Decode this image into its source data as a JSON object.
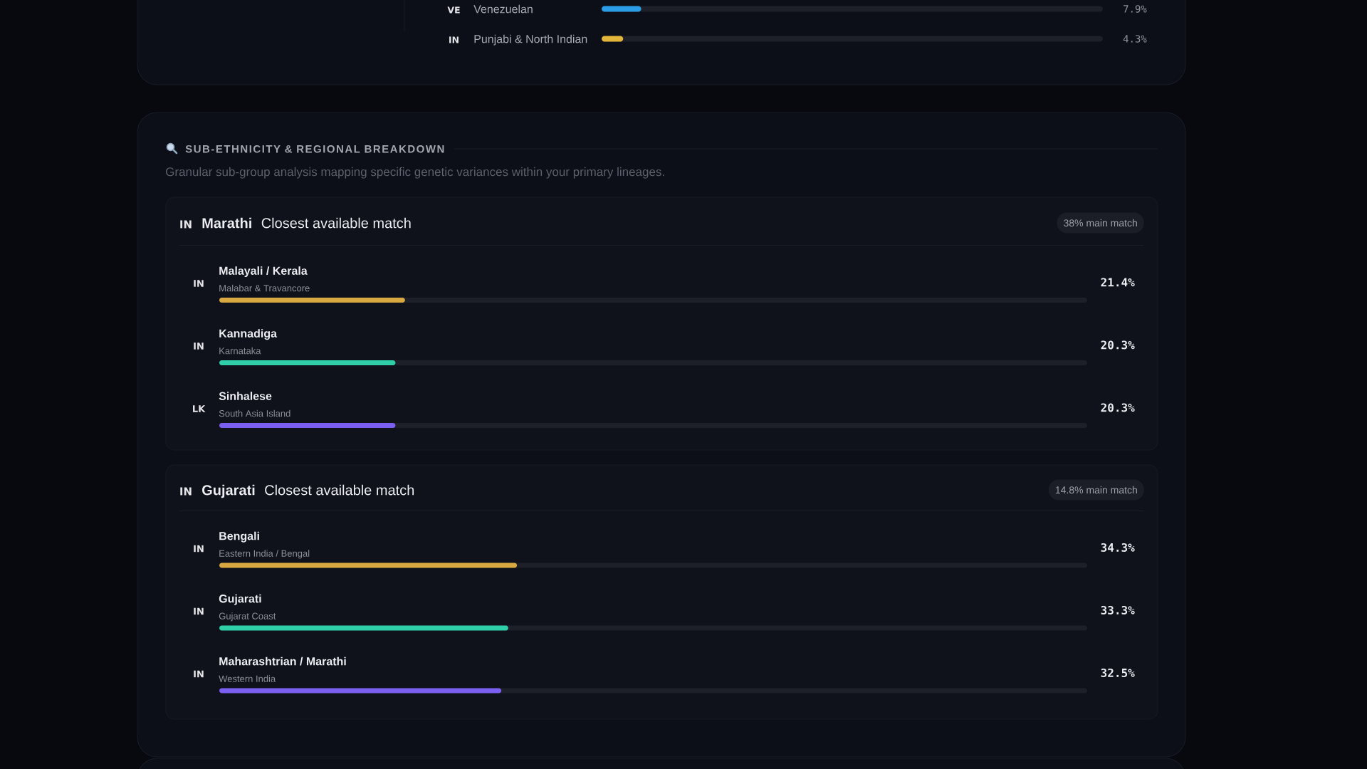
{
  "chart_data": [
    {
      "type": "bar",
      "orientation": "horizontal",
      "categories": [
        "Venezuelan",
        "Punjabi & North Indian"
      ],
      "values": [
        7.9,
        4.3
      ],
      "colors": [
        "#2b9de6",
        "#e3b53a"
      ],
      "value_labels": [
        "7.9%",
        "4.3%"
      ],
      "xlim": [
        0,
        100
      ],
      "tick_labels": "y",
      "annotations": [
        "VE",
        "IN"
      ]
    },
    {
      "type": "other",
      "title": "SUB-ETHNICITY & REGIONAL BREAKDOWN",
      "subtitle": "Granular sub-group analysis mapping specific genetic variances within your primary lineages."
    },
    {
      "type": "bar",
      "orientation": "horizontal",
      "title": "Marathi",
      "subtitle": "Closest available match",
      "categories": [
        "Malayali / Kerala",
        "Kannadiga",
        "Sinhalese"
      ],
      "values": [
        21.4,
        20.3,
        20.3
      ],
      "colors": [
        "#d9a941",
        "#2fcfaa",
        "#7b5ff0"
      ],
      "value_labels": [
        "21.4%",
        "20.3%",
        "20.3%"
      ],
      "xlim": [
        0,
        100
      ],
      "tick_labels": "y",
      "annotations": [
        "IN",
        "38% main match",
        "IN",
        {
          "text": "Malabar & Travancore",
          "y": "Malayali / Kerala"
        },
        "IN",
        {
          "text": "Karnataka",
          "y": "Kannadiga"
        },
        "LK",
        {
          "text": "South Asia Island",
          "y": "Sinhalese"
        }
      ]
    },
    {
      "type": "bar",
      "orientation": "horizontal",
      "title": "Gujarati",
      "subtitle": "Closest available match",
      "categories": [
        "Bengali",
        "Gujarati",
        "Maharashtrian / Marathi"
      ],
      "values": [
        34.3,
        33.3,
        32.5
      ],
      "colors": [
        "#d9a941",
        "#2fcfaa",
        "#7b5ff0"
      ],
      "value_labels": [
        "34.3%",
        "33.3%",
        "32.5%"
      ],
      "xlim": [
        0,
        100
      ],
      "tick_labels": "y",
      "annotations": [
        "IN",
        "14.8% main match",
        "IN",
        {
          "text": "Eastern India / Bengal",
          "y": "Bengali"
        },
        "IN",
        {
          "text": "Gujarat Coast",
          "y": "Gujarati"
        },
        "IN",
        {
          "text": "Western India",
          "y": "Maharashtrian / Marathi"
        }
      ]
    }
  ]
}
